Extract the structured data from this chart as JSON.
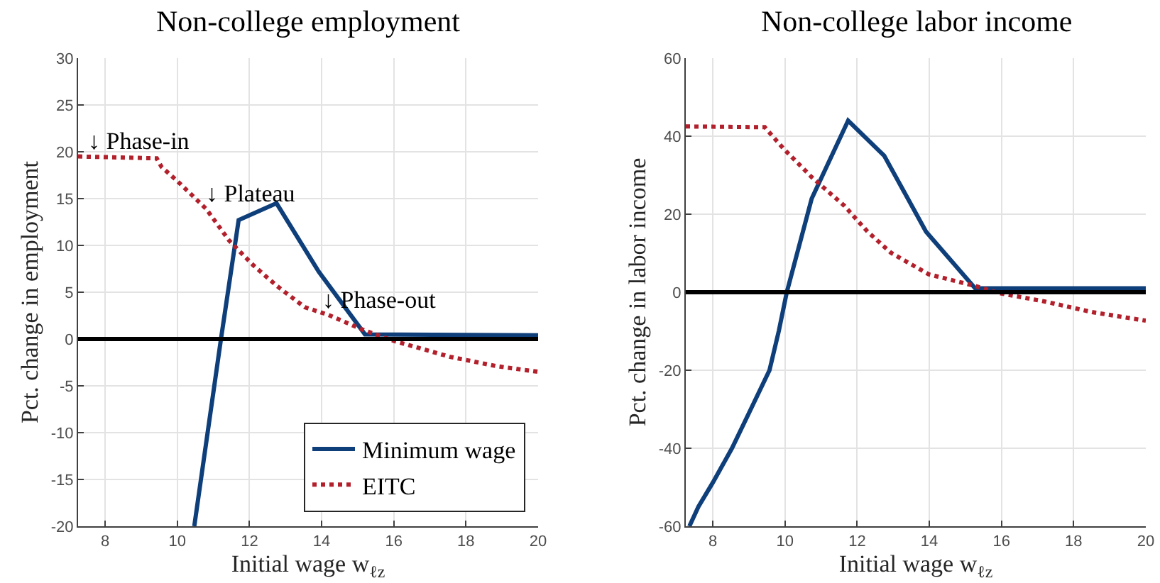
{
  "chart_data": [
    {
      "type": "line",
      "title": "Non-college employment",
      "xlabel": "Initial wage w$_{ℓz}$",
      "ylabel": "Pct. change in employment",
      "xlim": [
        7.25,
        20
      ],
      "xticks": [
        8,
        10,
        12,
        14,
        16,
        18,
        20
      ],
      "ylim": [
        -20,
        30
      ],
      "yticks": [
        -20,
        -15,
        -10,
        -5,
        0,
        5,
        10,
        15,
        20,
        25,
        30
      ],
      "grid": true,
      "legend": "bottom right",
      "ref_lines": [
        {
          "axis": "y",
          "value": 0,
          "color": "#000000"
        }
      ],
      "annotations": [
        {
          "text": "↓ Phase-in",
          "x": 7.68,
          "y": 19.5
        },
        {
          "text": "↓ Plateau",
          "x": 10.93,
          "y": 14
        },
        {
          "text": "↓ Phase-out",
          "x": 14.17,
          "y": 2.6
        }
      ],
      "series": [
        {
          "name": "Minimum wage",
          "color": "#0e3f7a",
          "line_style": "solid",
          "x": [
            10.47,
            11.21,
            11.7,
            12.75,
            13.92,
            15.2,
            20
          ],
          "values": [
            -20,
            0,
            12.7,
            14.5,
            7.2,
            0.5,
            0.4
          ]
        },
        {
          "name": "EITC",
          "color": "#b2202c",
          "line_style": "dotted",
          "x": [
            7.25,
            9.43,
            9.56,
            10.02,
            10.8,
            11.44,
            12.1,
            12.75,
            13.53,
            14.17,
            15.2,
            16.0,
            17.56,
            18.85,
            20
          ],
          "values": [
            19.5,
            19.3,
            18.4,
            16.8,
            13.9,
            10.5,
            7.9,
            5.7,
            3.4,
            2.6,
            0.9,
            -0.2,
            -1.9,
            -2.9,
            -3.5
          ]
        }
      ]
    },
    {
      "type": "line",
      "title": "Non-college labor income",
      "xlabel": "Initial wage w$_{ℓz}$",
      "ylabel": "Pct. change in labor income",
      "xlim": [
        7.25,
        20
      ],
      "xticks": [
        8,
        10,
        12,
        14,
        16,
        18,
        20
      ],
      "ylim": [
        -60,
        60
      ],
      "yticks": [
        -60,
        -40,
        -20,
        0,
        20,
        40,
        60
      ],
      "grid": true,
      "ref_lines": [
        {
          "axis": "y",
          "value": 0,
          "color": "#000000"
        }
      ],
      "series": [
        {
          "color": "#0e3f7a",
          "line_style": "solid",
          "x": [
            7.35,
            7.6,
            8.0,
            8.53,
            9.0,
            9.57,
            9.83,
            10.05,
            10.74,
            11.75,
            12.75,
            13.91,
            15.27,
            20
          ],
          "values": [
            -60,
            -55,
            -48.8,
            -40,
            -31,
            -20,
            -9.9,
            0,
            24,
            44,
            35,
            15.5,
            1,
            1
          ]
        },
        {
          "color": "#b2202c",
          "line_style": "dotted",
          "x": [
            7.25,
            9.44,
            9.96,
            10.74,
            11.64,
            12.29,
            12.94,
            13.98,
            15.27,
            15.92,
            17.21,
            18.51,
            20
          ],
          "values": [
            42.5,
            42.3,
            36.8,
            29.5,
            22.2,
            15.5,
            10.1,
            4.6,
            1.6,
            -0.2,
            -2.4,
            -5.1,
            -7.3
          ]
        }
      ]
    }
  ]
}
